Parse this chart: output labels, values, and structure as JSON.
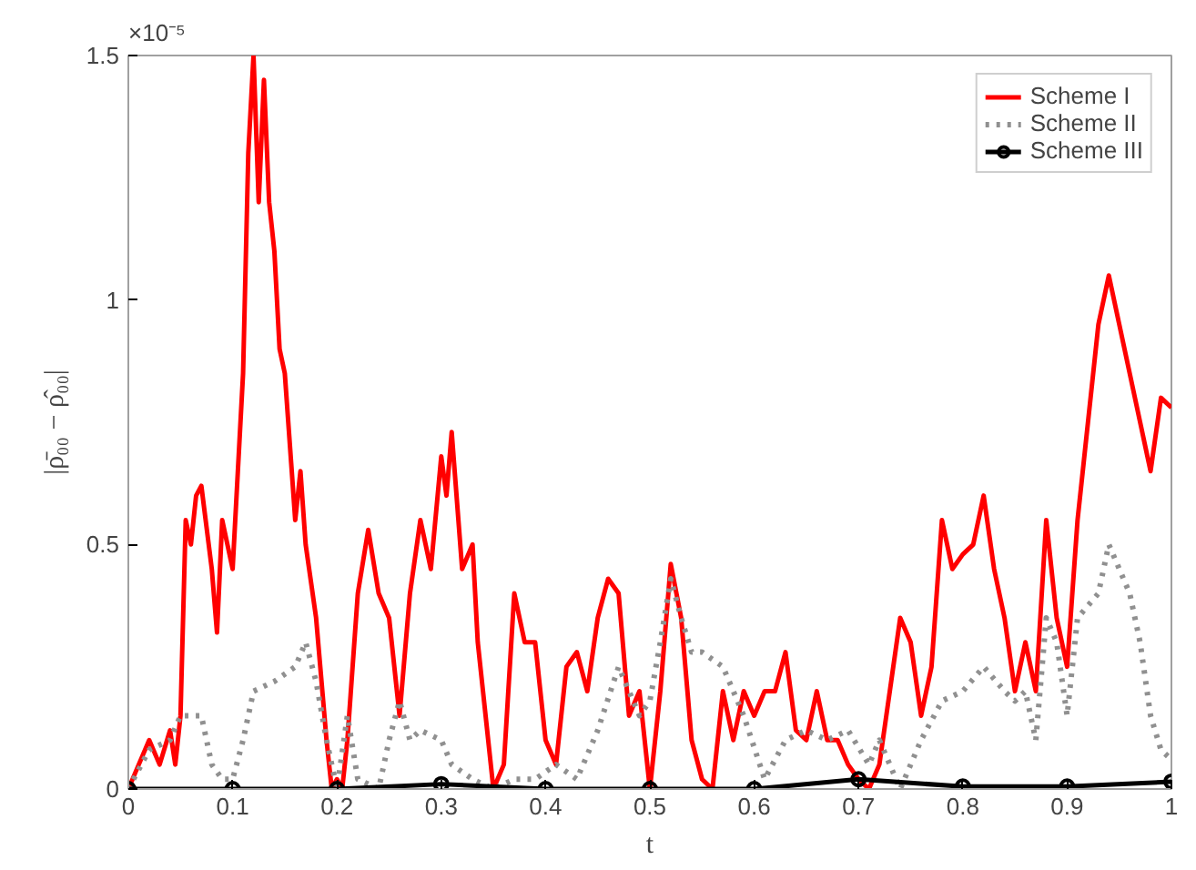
{
  "chart_data": {
    "type": "line",
    "xlabel": "t",
    "ylabel": "|ρ̄₀₀ − ρ̂₀₀|",
    "annotations": [
      "×10⁻⁵"
    ],
    "xlim": [
      0,
      1
    ],
    "xticks": [
      0,
      0.1,
      0.2,
      0.3,
      0.4,
      0.5,
      0.6,
      0.7,
      0.8,
      0.9,
      1
    ],
    "ylim": [
      0,
      1.5
    ],
    "yticks": [
      0,
      0.5,
      1,
      1.5
    ],
    "grid": false,
    "legend": "top right",
    "series": [
      {
        "name": "Scheme I",
        "color": "#ff0000",
        "line_style": "solid",
        "marker": "none",
        "x": [
          0,
          0.01,
          0.02,
          0.03,
          0.04,
          0.045,
          0.05,
          0.055,
          0.06,
          0.065,
          0.07,
          0.08,
          0.085,
          0.09,
          0.1,
          0.105,
          0.11,
          0.115,
          0.12,
          0.125,
          0.13,
          0.135,
          0.14,
          0.145,
          0.15,
          0.16,
          0.165,
          0.17,
          0.18,
          0.19,
          0.195,
          0.2,
          0.205,
          0.21,
          0.22,
          0.23,
          0.24,
          0.25,
          0.26,
          0.27,
          0.28,
          0.29,
          0.3,
          0.305,
          0.31,
          0.32,
          0.33,
          0.335,
          0.34,
          0.35,
          0.36,
          0.37,
          0.38,
          0.39,
          0.4,
          0.41,
          0.42,
          0.43,
          0.44,
          0.45,
          0.46,
          0.47,
          0.48,
          0.49,
          0.5,
          0.51,
          0.52,
          0.53,
          0.54,
          0.55,
          0.56,
          0.57,
          0.58,
          0.59,
          0.6,
          0.61,
          0.62,
          0.63,
          0.64,
          0.65,
          0.66,
          0.67,
          0.68,
          0.69,
          0.7,
          0.71,
          0.72,
          0.73,
          0.74,
          0.75,
          0.76,
          0.77,
          0.78,
          0.79,
          0.8,
          0.81,
          0.82,
          0.83,
          0.84,
          0.85,
          0.86,
          0.87,
          0.88,
          0.89,
          0.9,
          0.91,
          0.92,
          0.93,
          0.94,
          0.95,
          0.96,
          0.97,
          0.98,
          0.99,
          1
        ],
        "values": [
          0,
          0.05,
          0.1,
          0.05,
          0.12,
          0.05,
          0.15,
          0.55,
          0.5,
          0.6,
          0.62,
          0.45,
          0.32,
          0.55,
          0.45,
          0.65,
          0.85,
          1.3,
          1.5,
          1.2,
          1.45,
          1.2,
          1.1,
          0.9,
          0.85,
          0.55,
          0.65,
          0.5,
          0.35,
          0.1,
          0,
          0.02,
          0,
          0.1,
          0.4,
          0.53,
          0.4,
          0.35,
          0.15,
          0.4,
          0.55,
          0.45,
          0.68,
          0.6,
          0.73,
          0.45,
          0.5,
          0.3,
          0.2,
          0,
          0.05,
          0.4,
          0.3,
          0.3,
          0.1,
          0.05,
          0.25,
          0.28,
          0.2,
          0.35,
          0.43,
          0.4,
          0.15,
          0.2,
          0,
          0.2,
          0.46,
          0.35,
          0.1,
          0.02,
          0,
          0.2,
          0.1,
          0.2,
          0.15,
          0.2,
          0.2,
          0.28,
          0.12,
          0.1,
          0.2,
          0.1,
          0.1,
          0.05,
          0.02,
          0,
          0.05,
          0.2,
          0.35,
          0.3,
          0.15,
          0.25,
          0.55,
          0.45,
          0.48,
          0.5,
          0.6,
          0.45,
          0.35,
          0.2,
          0.3,
          0.2,
          0.55,
          0.35,
          0.25,
          0.55,
          0.75,
          0.95,
          1.05,
          0.95,
          0.85,
          0.75,
          0.65,
          0.8,
          0.78
        ]
      },
      {
        "name": "Scheme II",
        "color": "#909090",
        "line_style": "dotted",
        "marker": "none",
        "x": [
          0,
          0.02,
          0.04,
          0.05,
          0.07,
          0.08,
          0.09,
          0.1,
          0.11,
          0.12,
          0.14,
          0.16,
          0.17,
          0.18,
          0.19,
          0.2,
          0.21,
          0.22,
          0.24,
          0.25,
          0.26,
          0.27,
          0.28,
          0.3,
          0.31,
          0.33,
          0.35,
          0.37,
          0.39,
          0.41,
          0.43,
          0.45,
          0.47,
          0.49,
          0.5,
          0.51,
          0.52,
          0.53,
          0.54,
          0.55,
          0.57,
          0.59,
          0.61,
          0.63,
          0.65,
          0.67,
          0.69,
          0.71,
          0.72,
          0.74,
          0.76,
          0.78,
          0.8,
          0.82,
          0.84,
          0.85,
          0.86,
          0.87,
          0.88,
          0.89,
          0.9,
          0.91,
          0.93,
          0.94,
          0.95,
          0.96,
          0.97,
          0.98,
          0.99,
          1
        ],
        "values": [
          0,
          0.08,
          0.1,
          0.15,
          0.15,
          0.05,
          0.02,
          0.02,
          0.1,
          0.2,
          0.22,
          0.25,
          0.3,
          0.22,
          0.1,
          0,
          0.15,
          0.02,
          0,
          0.1,
          0.18,
          0.1,
          0.12,
          0.1,
          0.05,
          0.02,
          0,
          0.02,
          0.02,
          0.05,
          0.02,
          0.12,
          0.25,
          0.15,
          0.18,
          0.3,
          0.43,
          0.35,
          0.28,
          0.28,
          0.25,
          0.15,
          0.02,
          0.1,
          0.12,
          0.1,
          0.12,
          0.05,
          0.1,
          0,
          0.1,
          0.18,
          0.2,
          0.25,
          0.2,
          0.18,
          0.2,
          0.1,
          0.35,
          0.3,
          0.15,
          0.35,
          0.4,
          0.5,
          0.45,
          0.4,
          0.3,
          0.15,
          0.08,
          0.06
        ]
      },
      {
        "name": "Scheme III",
        "color": "#000000",
        "line_style": "solid",
        "marker": "circle",
        "x": [
          0,
          0.1,
          0.2,
          0.3,
          0.4,
          0.5,
          0.6,
          0.7,
          0.8,
          0.9,
          1
        ],
        "values": [
          0,
          0,
          0,
          0.01,
          0,
          0,
          0,
          0.02,
          0.005,
          0.005,
          0.015
        ]
      }
    ]
  }
}
